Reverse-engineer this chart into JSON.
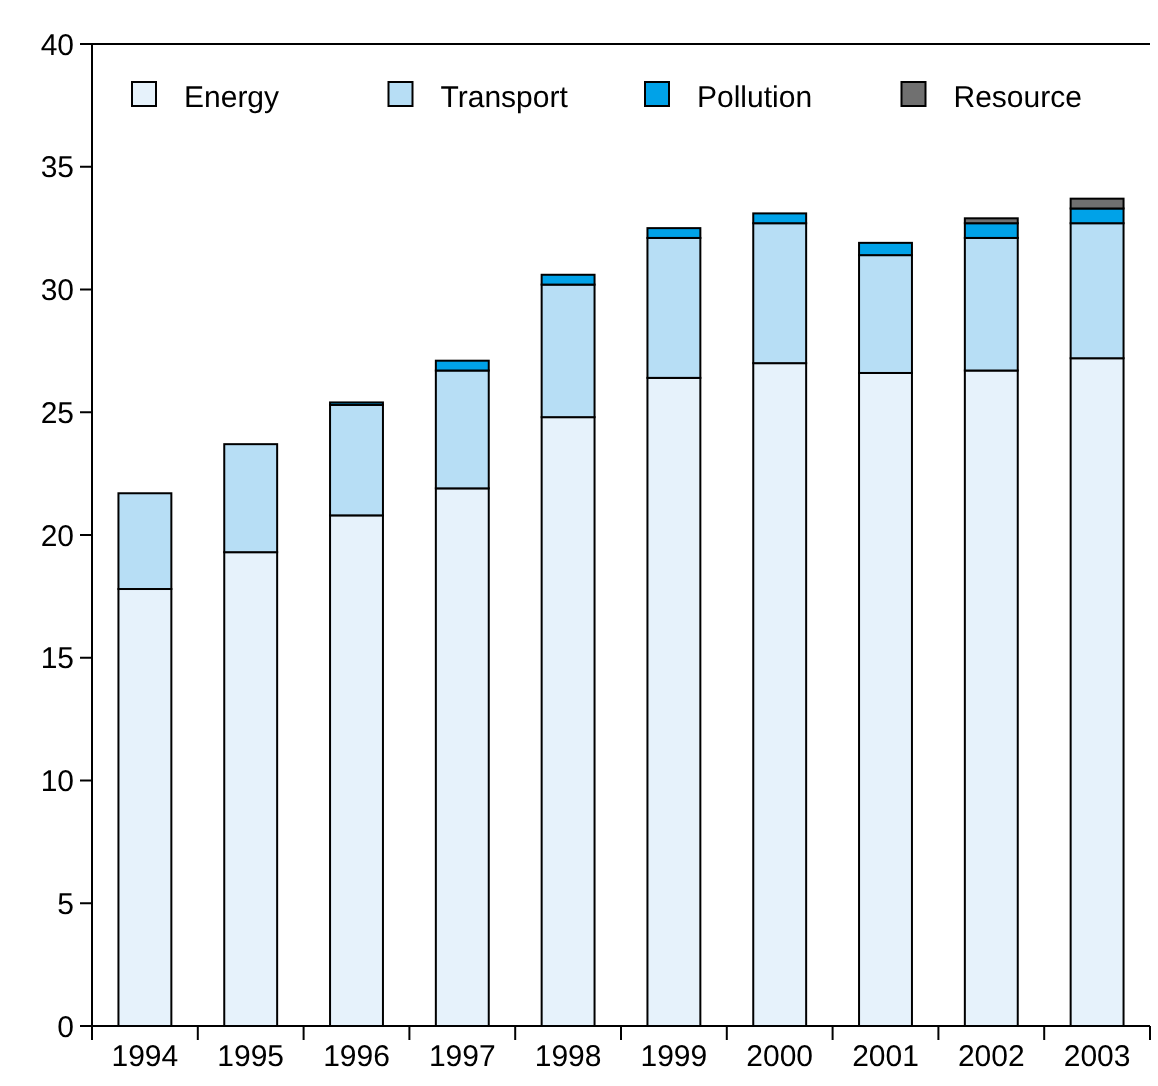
{
  "chart_data": {
    "type": "bar",
    "stacked": true,
    "categories": [
      "1994",
      "1995",
      "1996",
      "1997",
      "1998",
      "1999",
      "2000",
      "2001",
      "2002",
      "2003"
    ],
    "series": [
      {
        "name": "Energy",
        "color": "#e6f2fb",
        "values": [
          17.8,
          19.3,
          20.8,
          21.9,
          24.8,
          26.4,
          27.0,
          26.6,
          26.7,
          27.2
        ]
      },
      {
        "name": "Transport",
        "color": "#b7def5",
        "values": [
          3.9,
          4.4,
          4.5,
          4.8,
          5.4,
          5.7,
          5.7,
          4.8,
          5.4,
          5.5
        ]
      },
      {
        "name": "Pollution",
        "color": "#00a2e8",
        "values": [
          null,
          null,
          0.1,
          0.4,
          0.4,
          0.4,
          0.4,
          0.5,
          0.6,
          0.6
        ]
      },
      {
        "name": "Resource",
        "color": "#707070",
        "values": [
          null,
          null,
          null,
          null,
          null,
          null,
          null,
          null,
          0.2,
          0.4
        ]
      }
    ],
    "ylim": [
      0,
      40
    ],
    "yticks": [
      0,
      5,
      10,
      15,
      20,
      25,
      30,
      35,
      40
    ],
    "legend": "top",
    "grid": false
  }
}
